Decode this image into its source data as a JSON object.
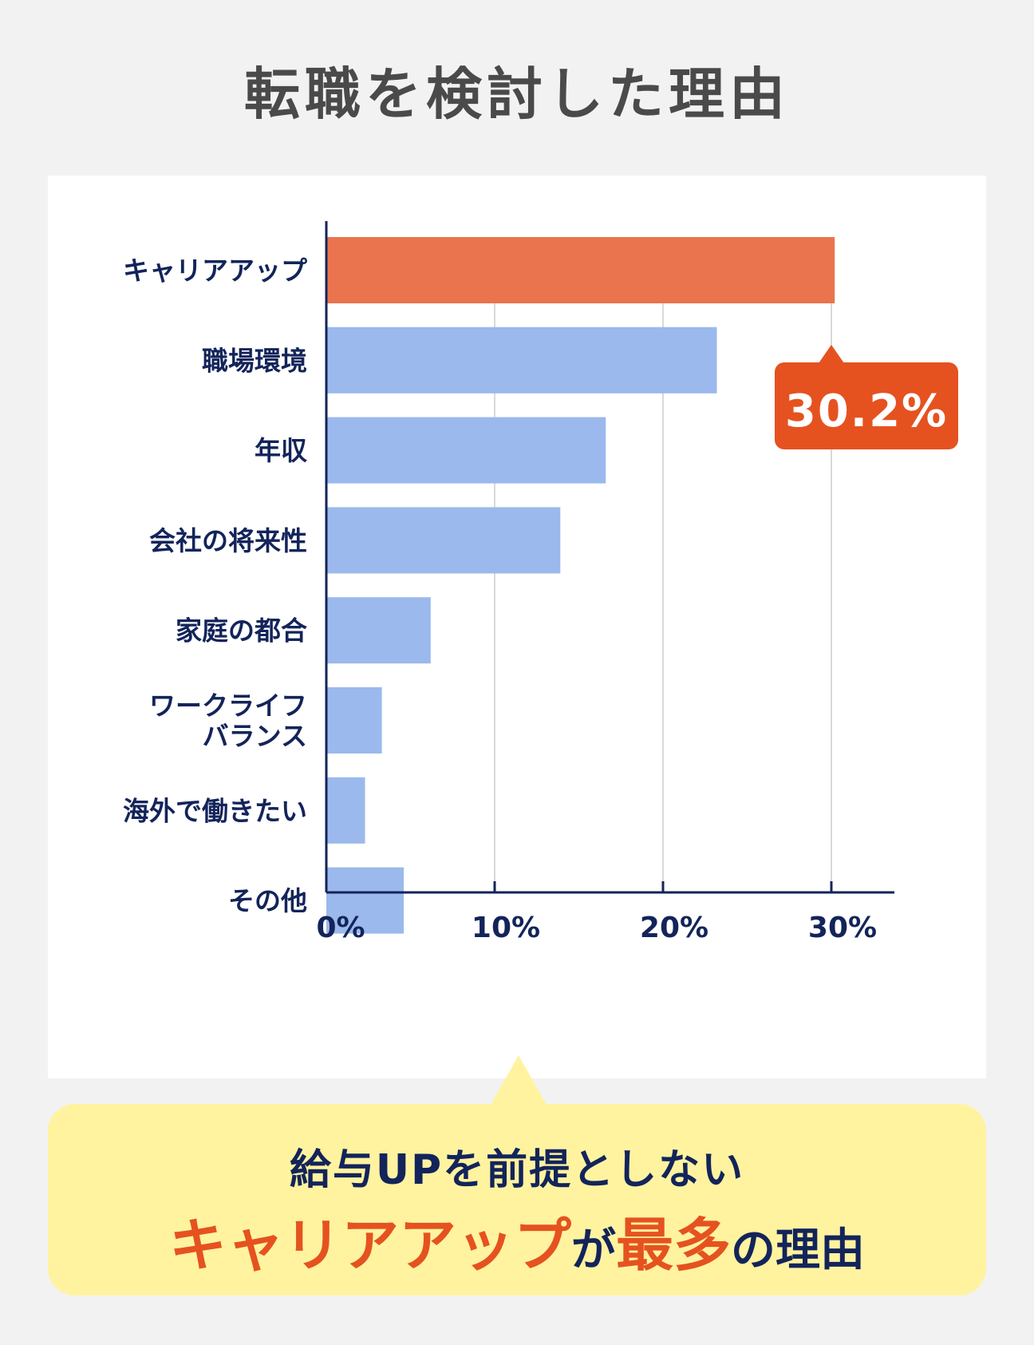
{
  "title": "転職を検討した理由",
  "chart_data": {
    "type": "bar",
    "orientation": "horizontal",
    "categories": [
      "キャリアアップ",
      "職場環境",
      "年収",
      "会社の将来性",
      "家庭の都合",
      "ワークライフ\nバランス",
      "海外で働きたい",
      "その他"
    ],
    "values": [
      30.2,
      23.2,
      16.6,
      13.9,
      6.2,
      3.3,
      2.3,
      4.6
    ],
    "xlim": [
      0,
      34
    ],
    "xticks": [
      "0%",
      "10%",
      "20%",
      "30%"
    ],
    "grid": true,
    "highlight_index": 0,
    "highlight_label": "30.2%",
    "colors": {
      "highlight": "#e9744d",
      "bar": "#9bb9ec",
      "callout": "#e55220",
      "axis": "#13245a",
      "grid": "#d9d9d9"
    }
  },
  "note": {
    "line1": "給与UPを前提としない",
    "line2_highlight1": "キャリアアップ",
    "line2_text1": "が",
    "line2_highlight2": "最多",
    "line2_text2": "の理由"
  }
}
